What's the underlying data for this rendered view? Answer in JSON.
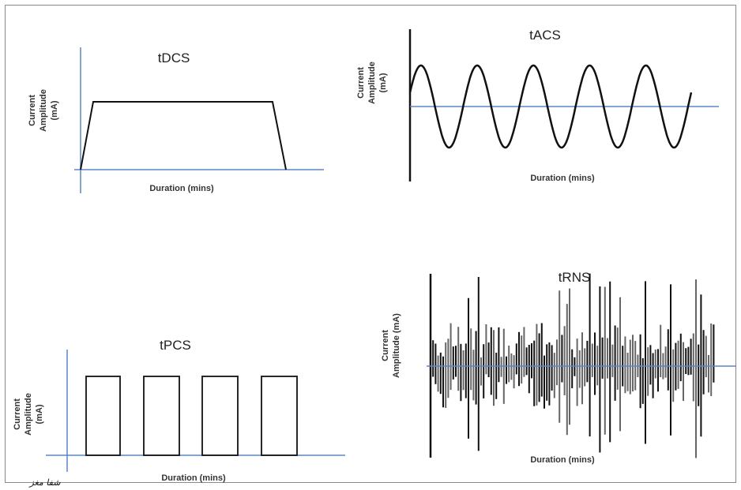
{
  "panels": [
    {
      "id": "tdcs",
      "title": "tDCS",
      "ylabel_line1": "Current",
      "ylabel_line2": "Amplitude",
      "ylabel_line3": "(mA)",
      "xlabel": "Duration (mins)"
    },
    {
      "id": "tacs",
      "title": "tACS",
      "ylabel_line1": "Current",
      "ylabel_line2": "Amplitude",
      "ylabel_line3": "(mA)",
      "xlabel": "Duration (mins)",
      "cycles": 5
    },
    {
      "id": "tpcs",
      "title": "tPCS",
      "ylabel_line1": "Current",
      "ylabel_line2": "Amplitude",
      "ylabel_line3": "(mA)",
      "xlabel": "Duration (mins)",
      "pulses": 4
    },
    {
      "id": "trns",
      "title": "tRNS",
      "ylabel_line1": "Current",
      "ylabel_line2": "Amplitude (mA)",
      "xlabel": "Duration (mins)"
    }
  ],
  "colors": {
    "axis": "#5b86c5",
    "waveform": "#111111",
    "noise": "#555555"
  },
  "watermark": "شفا مغز"
}
